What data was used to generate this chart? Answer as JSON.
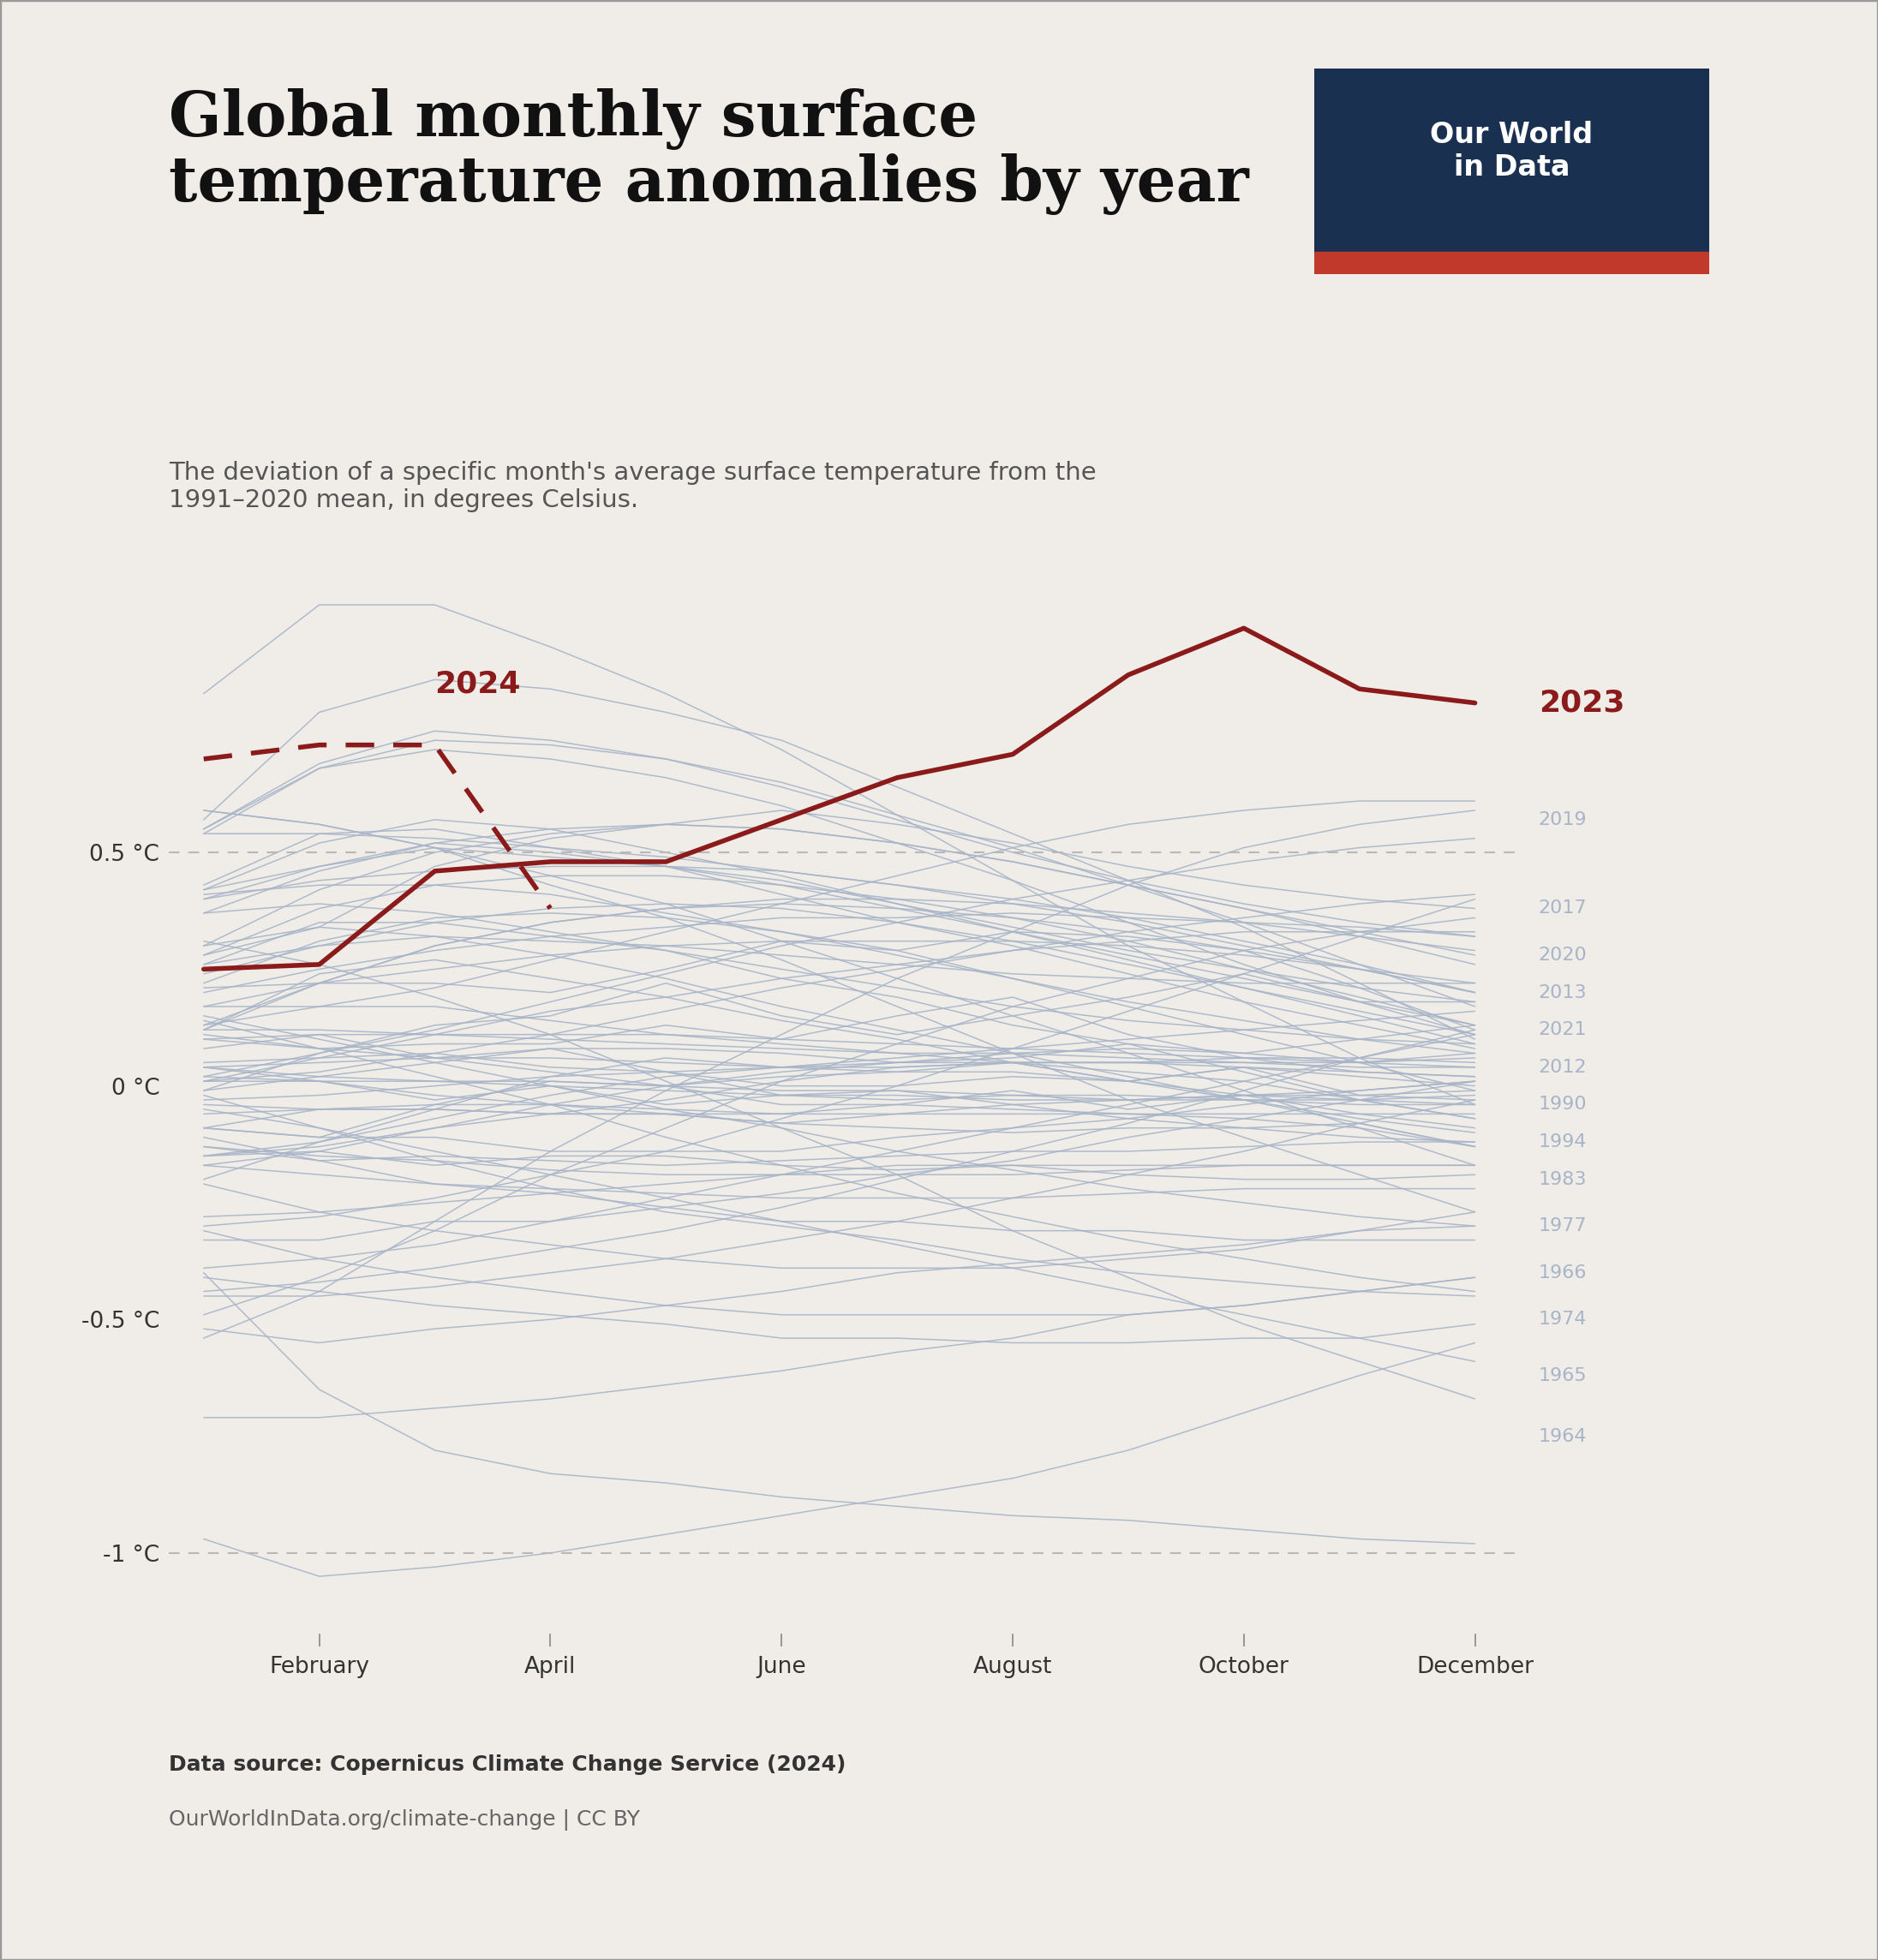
{
  "title": "Global monthly surface\ntemperature anomalies by year",
  "subtitle": "The deviation of a specific month's average surface temperature from the\n1991–2020 mean, in degrees Celsius.",
  "background_color": "#f0ede8",
  "month_labels": [
    "February",
    "April",
    "June",
    "August",
    "October",
    "December"
  ],
  "yticks": [
    -1.0,
    -0.5,
    0.0,
    0.5
  ],
  "ytick_labels": [
    "-1 °C",
    "-0.5 °C",
    "0 °C",
    "0.5 °C"
  ],
  "ylim": [
    -1.2,
    1.15
  ],
  "xlim": [
    -0.3,
    11.4
  ],
  "line_color_highlight": "#8b1a1a",
  "line_color_other": "#a8b5c8",
  "dashed_line_color": "#b8b8b8",
  "logo_bg": "#1a3050",
  "logo_red_bar": "#c0392b",
  "data_source_bold": "Data source: Copernicus Climate Change Service (2024)",
  "data_url": "OurWorldInData.org/climate-change | CC BY",
  "data_2023": [
    0.25,
    0.26,
    0.46,
    0.48,
    0.48,
    0.57,
    0.66,
    0.71,
    0.88,
    0.98,
    0.85,
    0.82
  ],
  "data_2024": [
    0.7,
    0.73,
    0.73,
    0.38,
    null,
    null,
    null,
    null,
    null,
    null,
    null,
    null
  ],
  "year_labels": {
    "2019": 0.57,
    "2017": 0.38,
    "2020": 0.28,
    "2013": 0.2,
    "2021": 0.12,
    "2012": 0.04,
    "1990": -0.04,
    "1994": -0.12,
    "1983": -0.2,
    "1977": -0.3,
    "1966": -0.4,
    "1974": -0.5,
    "1965": -0.62,
    "1964": -0.75
  },
  "historical_years": {
    "1940": [
      -0.15,
      -0.12,
      -0.05,
      0.02,
      0.06,
      0.04,
      0.03,
      0.05,
      0.01,
      0.04,
      -0.02,
      -0.01
    ],
    "1941": [
      -0.01,
      0.07,
      0.13,
      0.15,
      0.22,
      0.15,
      0.11,
      0.15,
      0.19,
      0.24,
      0.18,
      0.18
    ],
    "1942": [
      0.11,
      0.08,
      0.06,
      0.03,
      0.0,
      -0.04,
      -0.04,
      -0.01,
      -0.05,
      -0.02,
      -0.06,
      -0.09
    ],
    "1943": [
      -0.09,
      -0.11,
      -0.04,
      0.01,
      0.0,
      0.03,
      0.05,
      0.06,
      0.09,
      0.07,
      0.1,
      0.13
    ],
    "1944": [
      0.21,
      0.22,
      0.22,
      0.2,
      0.25,
      0.31,
      0.29,
      0.33,
      0.32,
      0.29,
      0.21,
      0.12
    ],
    "1945": [
      0.1,
      0.08,
      0.09,
      0.09,
      0.13,
      0.1,
      0.15,
      0.19,
      0.11,
      0.06,
      0.03,
      0.02
    ],
    "1946": [
      0.08,
      0.11,
      0.06,
      0.08,
      0.03,
      -0.02,
      -0.01,
      -0.04,
      -0.07,
      -0.09,
      -0.08,
      -0.13
    ],
    "1947": [
      -0.09,
      -0.05,
      -0.05,
      -0.06,
      -0.06,
      -0.08,
      -0.06,
      -0.04,
      -0.03,
      -0.02,
      -0.01,
      0.01
    ],
    "1948": [
      0.02,
      0.01,
      -0.03,
      0.0,
      -0.04,
      -0.02,
      -0.03,
      -0.02,
      -0.03,
      -0.02,
      -0.02,
      -0.03
    ],
    "1949": [
      -0.06,
      -0.05,
      -0.04,
      -0.04,
      -0.05,
      -0.06,
      -0.04,
      -0.05,
      -0.06,
      -0.07,
      -0.09,
      -0.13
    ],
    "1950": [
      -0.17,
      -0.14,
      -0.17,
      -0.15,
      -0.15,
      -0.17,
      -0.18,
      -0.17,
      -0.19,
      -0.2,
      -0.2,
      -0.19
    ],
    "1951": [
      -0.15,
      -0.14,
      -0.09,
      -0.04,
      0.0,
      0.02,
      0.03,
      0.03,
      0.01,
      0.04,
      0.02,
      0.0
    ],
    "1952": [
      0.05,
      0.06,
      0.07,
      0.04,
      0.03,
      0.0,
      0.0,
      0.02,
      0.01,
      -0.02,
      -0.03,
      -0.02
    ],
    "1953": [
      -0.01,
      0.02,
      0.05,
      0.08,
      0.08,
      0.07,
      0.05,
      0.07,
      0.08,
      0.07,
      0.05,
      0.06
    ],
    "1954": [
      0.04,
      0.01,
      -0.02,
      -0.04,
      -0.06,
      -0.08,
      -0.09,
      -0.1,
      -0.09,
      -0.09,
      -0.11,
      -0.12
    ],
    "1955": [
      -0.13,
      -0.16,
      -0.15,
      -0.16,
      -0.17,
      -0.16,
      -0.15,
      -0.14,
      -0.14,
      -0.13,
      -0.12,
      -0.12
    ],
    "1956": [
      -0.13,
      -0.15,
      -0.16,
      -0.18,
      -0.19,
      -0.19,
      -0.19,
      -0.19,
      -0.18,
      -0.17,
      -0.17,
      -0.17
    ],
    "1957": [
      -0.15,
      -0.13,
      -0.09,
      -0.06,
      -0.03,
      0.01,
      0.04,
      0.05,
      0.05,
      0.05,
      0.05,
      0.07
    ],
    "1958": [
      0.1,
      0.11,
      0.11,
      0.1,
      0.09,
      0.08,
      0.07,
      0.07,
      0.06,
      0.05,
      0.04,
      0.04
    ],
    "1959": [
      0.04,
      0.05,
      0.06,
      0.06,
      0.05,
      0.04,
      0.04,
      0.05,
      0.05,
      0.06,
      0.06,
      0.05
    ],
    "1960": [
      0.04,
      0.02,
      0.01,
      0.0,
      -0.01,
      -0.02,
      -0.02,
      -0.03,
      -0.03,
      -0.03,
      -0.04,
      -0.04
    ],
    "1961": [
      -0.03,
      -0.02,
      0.0,
      0.02,
      0.03,
      0.04,
      0.05,
      0.05,
      0.05,
      0.04,
      0.03,
      0.02
    ],
    "1962": [
      0.01,
      0.01,
      0.01,
      0.01,
      0.0,
      -0.01,
      -0.01,
      -0.02,
      -0.02,
      -0.03,
      -0.03,
      -0.04
    ],
    "1963": [
      -0.04,
      -0.05,
      -0.05,
      -0.06,
      -0.06,
      -0.06,
      -0.06,
      -0.06,
      -0.06,
      -0.06,
      -0.06,
      -0.06
    ],
    "1964": [
      -0.4,
      -0.65,
      -0.78,
      -0.83,
      -0.85,
      -0.88,
      -0.9,
      -0.92,
      -0.93,
      -0.95,
      -0.97,
      -0.98
    ],
    "1965": [
      -0.97,
      -1.05,
      -1.03,
      -1.0,
      -0.96,
      -0.92,
      -0.88,
      -0.84,
      -0.78,
      -0.7,
      -0.62,
      -0.55
    ],
    "1966": [
      -0.52,
      -0.55,
      -0.52,
      -0.5,
      -0.47,
      -0.44,
      -0.4,
      -0.38,
      -0.36,
      -0.34,
      -0.31,
      -0.3
    ],
    "1967": [
      -0.28,
      -0.27,
      -0.25,
      -0.23,
      -0.21,
      -0.19,
      -0.17,
      -0.17,
      -0.17,
      -0.17,
      -0.17,
      -0.17
    ],
    "1968": [
      -0.17,
      -0.19,
      -0.21,
      -0.22,
      -0.23,
      -0.24,
      -0.24,
      -0.24,
      -0.23,
      -0.22,
      -0.22,
      -0.22
    ],
    "1969": [
      -0.2,
      -0.12,
      -0.07,
      -0.02,
      0.02,
      0.04,
      0.06,
      0.08,
      0.1,
      0.12,
      0.14,
      0.16
    ],
    "1970": [
      0.17,
      0.17,
      0.17,
      0.14,
      0.11,
      0.09,
      0.07,
      0.05,
      0.03,
      0.01,
      -0.03,
      -0.07
    ],
    "1971": [
      -0.11,
      -0.16,
      -0.21,
      -0.23,
      -0.26,
      -0.29,
      -0.29,
      -0.31,
      -0.31,
      -0.33,
      -0.33,
      -0.33
    ],
    "1972": [
      -0.33,
      -0.33,
      -0.29,
      -0.29,
      -0.26,
      -0.23,
      -0.19,
      -0.16,
      -0.11,
      -0.07,
      -0.03,
      0.01
    ],
    "1973": [
      0.01,
      0.06,
      0.11,
      0.16,
      0.19,
      0.23,
      0.26,
      0.29,
      0.31,
      0.33,
      0.33,
      0.33
    ],
    "1974": [
      0.31,
      0.26,
      0.19,
      0.11,
      0.01,
      -0.09,
      -0.19,
      -0.31,
      -0.41,
      -0.51,
      -0.59,
      -0.67
    ],
    "1975": [
      -0.71,
      -0.71,
      -0.69,
      -0.67,
      -0.64,
      -0.61,
      -0.57,
      -0.54,
      -0.49,
      -0.47,
      -0.44,
      -0.41
    ],
    "1976": [
      -0.41,
      -0.44,
      -0.47,
      -0.49,
      -0.51,
      -0.54,
      -0.54,
      -0.55,
      -0.55,
      -0.54,
      -0.54,
      -0.51
    ],
    "1977": [
      -0.49,
      -0.41,
      -0.31,
      -0.19,
      -0.09,
      0.01,
      0.09,
      0.17,
      0.23,
      0.29,
      0.33,
      0.36
    ],
    "1978": [
      0.37,
      0.39,
      0.37,
      0.33,
      0.29,
      0.23,
      0.19,
      0.13,
      0.09,
      0.03,
      -0.03,
      -0.07
    ],
    "1979": [
      -0.09,
      -0.11,
      -0.11,
      -0.14,
      -0.14,
      -0.14,
      -0.11,
      -0.09,
      -0.07,
      -0.04,
      -0.01,
      0.01
    ],
    "1980": [
      0.01,
      0.03,
      0.07,
      0.11,
      0.16,
      0.21,
      0.25,
      0.29,
      0.33,
      0.36,
      0.39,
      0.41
    ],
    "1981": [
      0.41,
      0.43,
      0.43,
      0.41,
      0.37,
      0.33,
      0.29,
      0.23,
      0.17,
      0.11,
      0.05,
      -0.01
    ],
    "1982": [
      -0.05,
      -0.09,
      -0.14,
      -0.19,
      -0.24,
      -0.29,
      -0.34,
      -0.39,
      -0.44,
      -0.49,
      -0.54,
      -0.59
    ],
    "1983": [
      -0.54,
      -0.44,
      -0.29,
      -0.14,
      -0.01,
      0.11,
      0.23,
      0.33,
      0.43,
      0.51,
      0.56,
      0.59
    ],
    "1984": [
      0.59,
      0.56,
      0.51,
      0.43,
      0.36,
      0.27,
      0.17,
      0.07,
      -0.03,
      -0.11,
      -0.19,
      -0.27
    ],
    "1985": [
      -0.31,
      -0.37,
      -0.41,
      -0.44,
      -0.47,
      -0.49,
      -0.49,
      -0.49,
      -0.49,
      -0.47,
      -0.44,
      -0.41
    ],
    "1986": [
      -0.39,
      -0.37,
      -0.34,
      -0.29,
      -0.24,
      -0.19,
      -0.14,
      -0.09,
      -0.04,
      0.01,
      0.06,
      0.11
    ],
    "1987": [
      0.13,
      0.17,
      0.21,
      0.27,
      0.33,
      0.39,
      0.45,
      0.51,
      0.56,
      0.59,
      0.61,
      0.61
    ],
    "1988": [
      0.59,
      0.56,
      0.51,
      0.45,
      0.39,
      0.31,
      0.23,
      0.15,
      0.07,
      -0.01,
      -0.09,
      -0.17
    ],
    "1989": [
      -0.21,
      -0.27,
      -0.31,
      -0.34,
      -0.37,
      -0.39,
      -0.39,
      -0.39,
      -0.37,
      -0.35,
      -0.31,
      -0.27
    ],
    "1990": [
      0.28,
      0.34,
      0.47,
      0.53,
      0.56,
      0.59,
      0.56,
      0.52,
      0.47,
      0.43,
      0.4,
      0.38
    ],
    "1991": [
      0.4,
      0.44,
      0.46,
      0.47,
      0.47,
      0.46,
      0.43,
      0.4,
      0.36,
      0.31,
      0.26,
      0.2
    ],
    "1992": [
      0.14,
      0.08,
      0.02,
      -0.04,
      -0.11,
      -0.17,
      -0.23,
      -0.28,
      -0.33,
      -0.37,
      -0.41,
      -0.44
    ],
    "1993": [
      -0.45,
      -0.45,
      -0.43,
      -0.4,
      -0.37,
      -0.33,
      -0.29,
      -0.24,
      -0.19,
      -0.14,
      -0.08,
      -0.03
    ],
    "1994": [
      0.02,
      0.07,
      0.12,
      0.18,
      0.24,
      0.3,
      0.35,
      0.4,
      0.44,
      0.48,
      0.51,
      0.53
    ],
    "1995": [
      0.54,
      0.54,
      0.53,
      0.51,
      0.49,
      0.46,
      0.43,
      0.39,
      0.35,
      0.3,
      0.25,
      0.2
    ],
    "1996": [
      0.15,
      0.1,
      0.05,
      0.0,
      -0.05,
      -0.09,
      -0.14,
      -0.18,
      -0.22,
      -0.25,
      -0.28,
      -0.3
    ],
    "1997": [
      -0.3,
      -0.28,
      -0.24,
      -0.19,
      -0.14,
      -0.07,
      0.0,
      0.08,
      0.16,
      0.24,
      0.32,
      0.4
    ],
    "1998": [
      0.57,
      0.8,
      0.87,
      0.85,
      0.8,
      0.74,
      0.64,
      0.54,
      0.44,
      0.34,
      0.22,
      0.1
    ],
    "1999": [
      -0.02,
      -0.09,
      -0.16,
      -0.22,
      -0.27,
      -0.3,
      -0.33,
      -0.37,
      -0.4,
      -0.42,
      -0.44,
      -0.45
    ],
    "2000": [
      -0.44,
      -0.42,
      -0.39,
      -0.35,
      -0.31,
      -0.26,
      -0.2,
      -0.14,
      -0.08,
      -0.01,
      0.06,
      0.12
    ],
    "2001": [
      0.17,
      0.22,
      0.25,
      0.28,
      0.3,
      0.31,
      0.31,
      0.31,
      0.3,
      0.28,
      0.25,
      0.22
    ],
    "2002": [
      0.42,
      0.52,
      0.57,
      0.55,
      0.5,
      0.45,
      0.39,
      0.33,
      0.27,
      0.21,
      0.15,
      0.09
    ],
    "2003": [
      0.42,
      0.47,
      0.52,
      0.5,
      0.47,
      0.43,
      0.38,
      0.33,
      0.28,
      0.23,
      0.18,
      0.13
    ],
    "2004": [
      0.26,
      0.35,
      0.35,
      0.32,
      0.29,
      0.25,
      0.21,
      0.17,
      0.14,
      0.12,
      0.1,
      0.09
    ],
    "2005": [
      0.4,
      0.47,
      0.51,
      0.49,
      0.47,
      0.44,
      0.39,
      0.34,
      0.29,
      0.25,
      0.21,
      0.18
    ],
    "2006": [
      0.26,
      0.3,
      0.32,
      0.31,
      0.3,
      0.28,
      0.26,
      0.24,
      0.23,
      0.22,
      0.22,
      0.22
    ],
    "2007": [
      0.43,
      0.54,
      0.55,
      0.51,
      0.47,
      0.41,
      0.35,
      0.3,
      0.24,
      0.18,
      0.13,
      0.08
    ],
    "2008": [
      0.12,
      0.12,
      0.11,
      0.11,
      0.11,
      0.1,
      0.09,
      0.08,
      0.07,
      0.06,
      0.05,
      0.04
    ],
    "2009": [
      0.2,
      0.25,
      0.29,
      0.32,
      0.34,
      0.36,
      0.36,
      0.37,
      0.36,
      0.35,
      0.34,
      0.32
    ],
    "2010": [
      0.54,
      0.68,
      0.72,
      0.7,
      0.66,
      0.6,
      0.52,
      0.44,
      0.35,
      0.26,
      0.18,
      0.11
    ],
    "2011": [
      0.3,
      0.34,
      0.32,
      0.28,
      0.23,
      0.17,
      0.12,
      0.07,
      0.02,
      -0.03,
      -0.08,
      -0.13
    ],
    "2012": [
      0.12,
      0.24,
      0.27,
      0.23,
      0.19,
      0.14,
      0.1,
      0.05,
      0.01,
      -0.03,
      -0.07,
      -0.1
    ],
    "2013": [
      0.12,
      0.22,
      0.3,
      0.35,
      0.38,
      0.4,
      0.4,
      0.39,
      0.37,
      0.35,
      0.32,
      0.29
    ],
    "2014": [
      0.37,
      0.46,
      0.52,
      0.55,
      0.56,
      0.55,
      0.52,
      0.48,
      0.43,
      0.38,
      0.32,
      0.26
    ],
    "2015": [
      0.55,
      0.69,
      0.76,
      0.74,
      0.7,
      0.64,
      0.57,
      0.5,
      0.44,
      0.39,
      0.35,
      0.32
    ],
    "2016": [
      0.84,
      1.03,
      1.03,
      0.94,
      0.84,
      0.72,
      0.58,
      0.44,
      0.3,
      0.18,
      0.06,
      -0.04
    ],
    "2017": [
      0.13,
      0.22,
      0.3,
      0.35,
      0.38,
      0.39,
      0.38,
      0.36,
      0.33,
      0.29,
      0.25,
      0.2
    ],
    "2018": [
      0.28,
      0.38,
      0.43,
      0.45,
      0.45,
      0.43,
      0.4,
      0.36,
      0.31,
      0.25,
      0.19,
      0.13
    ],
    "2019": [
      0.3,
      0.42,
      0.5,
      0.54,
      0.56,
      0.55,
      0.52,
      0.48,
      0.43,
      0.38,
      0.33,
      0.28
    ],
    "2020": [
      0.55,
      0.68,
      0.74,
      0.73,
      0.7,
      0.65,
      0.58,
      0.51,
      0.43,
      0.35,
      0.26,
      0.17
    ],
    "2021": [
      0.24,
      0.3,
      0.35,
      0.38,
      0.39,
      0.38,
      0.35,
      0.31,
      0.26,
      0.21,
      0.16,
      0.11
    ],
    "2022": [
      0.22,
      0.31,
      0.36,
      0.37,
      0.36,
      0.33,
      0.28,
      0.23,
      0.18,
      0.14,
      0.1,
      0.07
    ]
  }
}
